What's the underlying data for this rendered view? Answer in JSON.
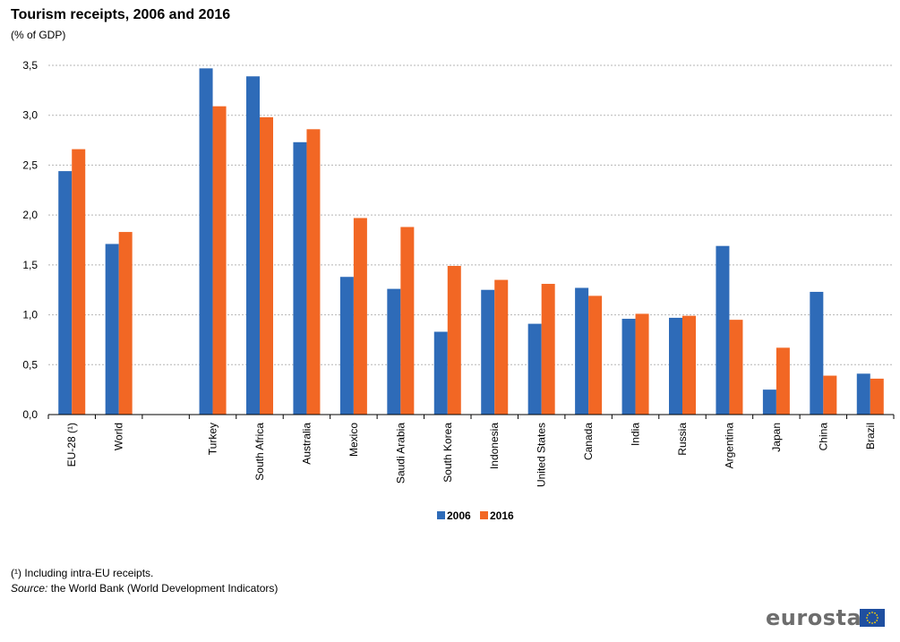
{
  "header": {
    "title": "Tourism receipts, 2006 and 2016",
    "subtitle": "(% of GDP)"
  },
  "chart_data": {
    "type": "bar",
    "title": "Tourism receipts, 2006 and 2016",
    "subtitle": "(% of GDP)",
    "ylim": [
      0,
      3.5
    ],
    "yticks": [
      "0,0",
      "0,5",
      "1,0",
      "1,5",
      "2,0",
      "2,5",
      "3,0",
      "3,5"
    ],
    "ytick_values": [
      0,
      0.5,
      1.0,
      1.5,
      2.0,
      2.5,
      3.0,
      3.5
    ],
    "grid": true,
    "legend_position": "bottom-center",
    "categories": [
      "EU-28 (¹)",
      "World",
      "",
      "Turkey",
      "South Africa",
      "Australia",
      "Mexico",
      "Saudi Arabia",
      "South Korea",
      "Indonesia",
      "United States",
      "Canada",
      "India",
      "Russia",
      "Argentina",
      "Japan",
      "China",
      "Brazil"
    ],
    "series": [
      {
        "name": "2006",
        "color": "#2e6bb8",
        "values": [
          2.44,
          1.71,
          null,
          3.47,
          3.39,
          2.73,
          1.38,
          1.26,
          0.83,
          1.25,
          0.91,
          1.27,
          0.96,
          0.97,
          1.69,
          0.25,
          1.23,
          0.41
        ]
      },
      {
        "name": "2016",
        "color": "#f26724",
        "values": [
          2.66,
          1.83,
          null,
          3.09,
          2.98,
          2.86,
          1.97,
          1.88,
          1.49,
          1.35,
          1.31,
          1.19,
          1.01,
          0.99,
          0.95,
          0.67,
          0.39,
          0.36
        ]
      }
    ]
  },
  "footer": {
    "footnote": "(¹) Including intra-EU receipts.",
    "source_label": "Source:",
    "source_text": " the World Bank (World Development Indicators)",
    "logo_text": "eurostat"
  }
}
